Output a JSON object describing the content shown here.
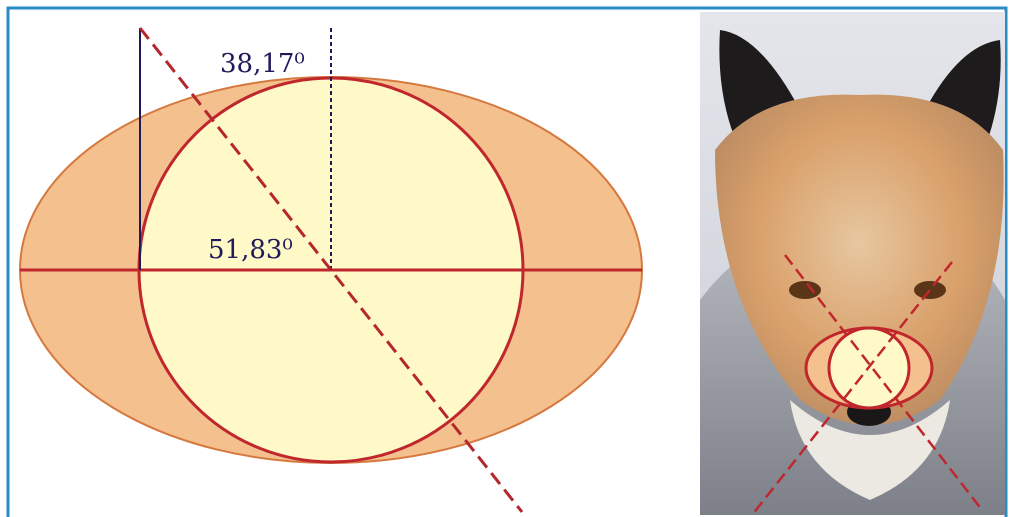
{
  "labels": {
    "top_angle": "38,17⁰",
    "center_angle": "51,83⁰"
  }
}
